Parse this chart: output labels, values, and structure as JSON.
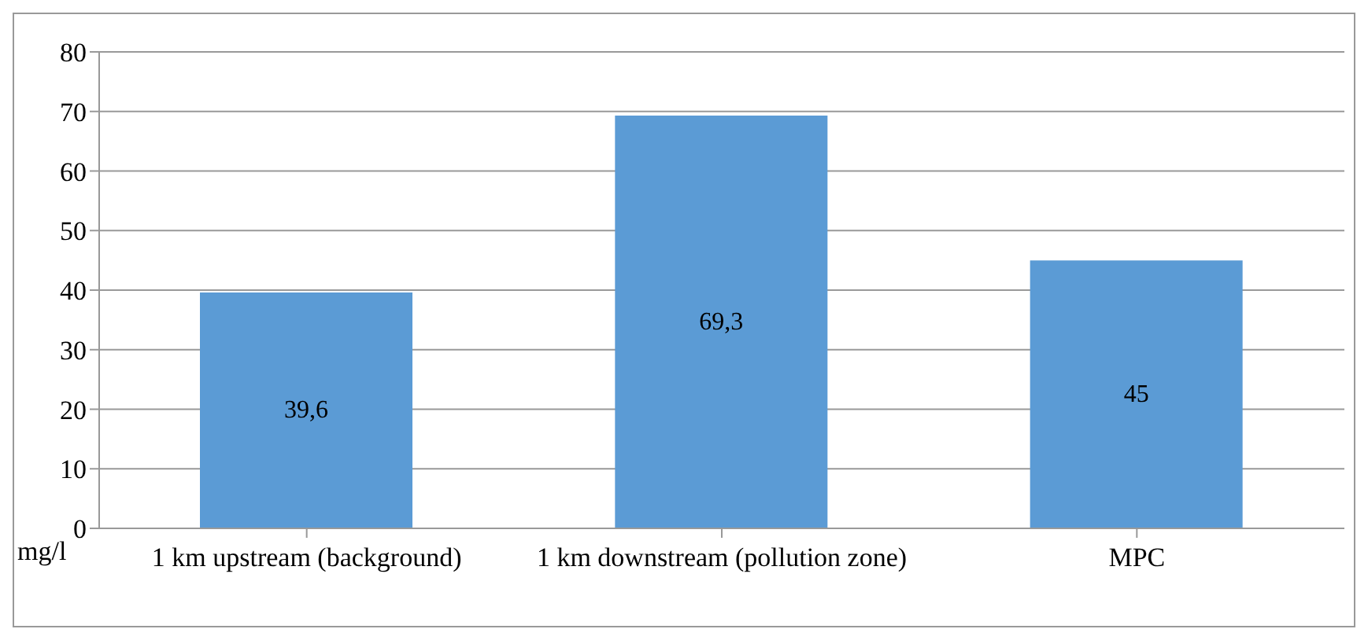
{
  "chart_data": {
    "type": "bar",
    "ylabel": "mg/l",
    "categories": [
      "1 km upstream (background)",
      "1 km downstream (pollution zone)",
      "MPC"
    ],
    "values": [
      39.6,
      69.3,
      45
    ],
    "color": "#5b9bd5",
    "value_labels": [
      "39,6",
      "69,3",
      "45"
    ],
    "ylim": [
      0,
      80
    ],
    "yticks": [
      0,
      10,
      20,
      30,
      40,
      50,
      60,
      70,
      80
    ],
    "grid": "y"
  }
}
